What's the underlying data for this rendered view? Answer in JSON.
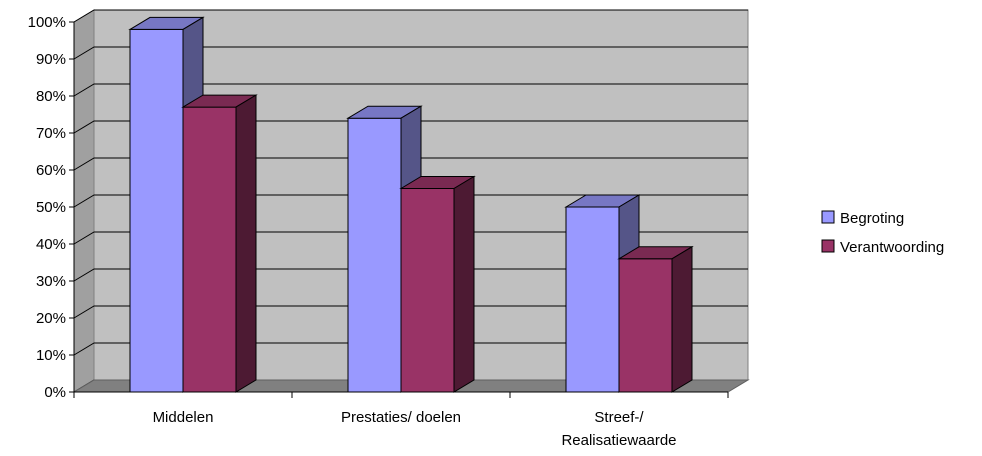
{
  "chart_data": {
    "type": "bar",
    "categories": [
      [
        "Middelen"
      ],
      [
        "Prestaties/ doelen"
      ],
      [
        "Streef-/",
        "Realisatiewaarde"
      ]
    ],
    "series": [
      {
        "name": "Begroting",
        "values": [
          98,
          74,
          50
        ]
      },
      {
        "name": "Verantwoording",
        "values": [
          77,
          55,
          36
        ]
      }
    ],
    "yticks": [
      "0%",
      "10%",
      "20%",
      "30%",
      "40%",
      "50%",
      "60%",
      "70%",
      "80%",
      "90%",
      "100%"
    ],
    "ylim": [
      0,
      100
    ],
    "grid": true,
    "legend": "right",
    "colors": {
      "plot_background": "#c0c0c0",
      "floor": "#808080",
      "series": [
        "#9999ff",
        "#993366"
      ],
      "series_top": [
        "#7777c4",
        "#7a2a52"
      ],
      "series_side": [
        "#555588",
        "#4d1a33"
      ]
    }
  }
}
